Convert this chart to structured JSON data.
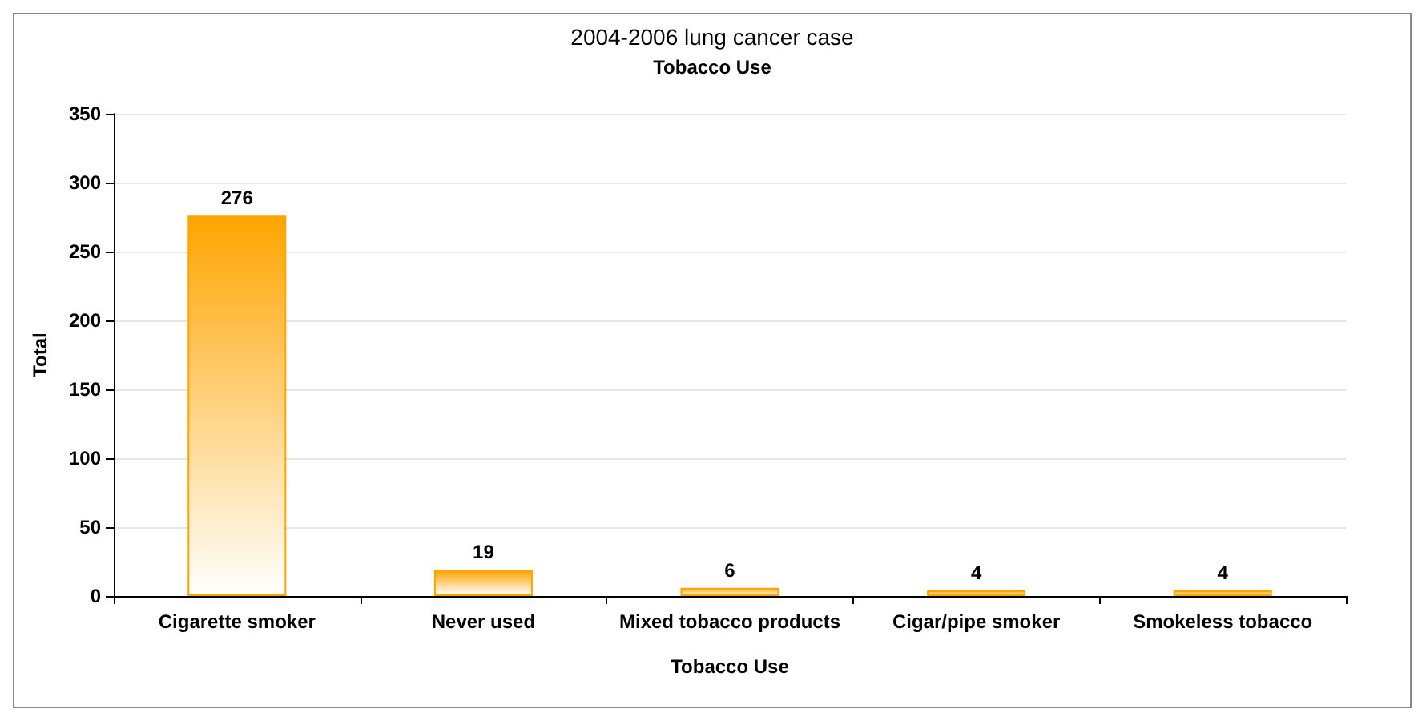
{
  "chart_data": {
    "type": "bar",
    "title": "2004-2006 lung cancer case",
    "subtitle": "Tobacco Use",
    "xlabel": "Tobacco Use",
    "ylabel": "Total",
    "categories": [
      "Cigarette smoker",
      "Never used",
      "Mixed tobacco products",
      "Cigar/pipe smoker",
      "Smokeless tobacco"
    ],
    "values": [
      276,
      19,
      6,
      4,
      4
    ],
    "color": "#ffa500",
    "ylim": [
      0,
      350
    ],
    "yticks": [
      0,
      50,
      100,
      150,
      200,
      250,
      300,
      350
    ],
    "grid": "y",
    "data_labels": true
  }
}
